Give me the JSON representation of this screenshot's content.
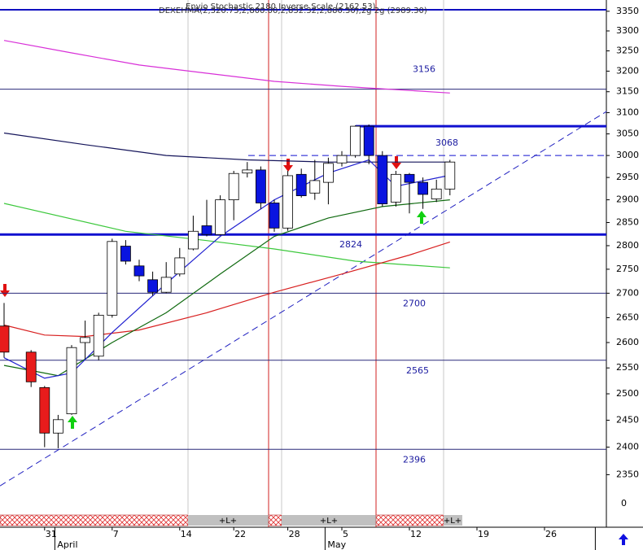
{
  "chart_data": {
    "type": "candlestick",
    "header": [
      "DEXEHMA(2,320.75,2,800.00,2,832.32,2,880.30),2g 2g (2989.30)",
      "Envio Stochastic 2180 Inverse Scale (2162.53)"
    ],
    "categories": [
      null,
      null,
      null,
      "31",
      null,
      null,
      null,
      null,
      "7",
      null,
      null,
      null,
      null,
      "14",
      null,
      null,
      null,
      "22",
      null,
      null,
      null,
      "28",
      null,
      null,
      null,
      "5",
      null,
      null,
      null,
      null,
      "12",
      null,
      null,
      null,
      null,
      "19",
      null,
      null,
      null,
      null,
      "26",
      null,
      null,
      null,
      null
    ],
    "months": [
      null,
      null,
      null,
      null,
      "April",
      null,
      null,
      null,
      null,
      null,
      null,
      null,
      null,
      null,
      null,
      null,
      null,
      null,
      null,
      null,
      null,
      null,
      null,
      null,
      "May",
      null,
      null,
      null,
      null,
      null,
      null,
      null,
      null,
      null,
      null,
      null,
      null,
      null,
      null,
      null,
      null,
      null,
      null,
      null
    ],
    "open": [
      2633,
      null,
      2581,
      2512,
      2426,
      2462,
      2600,
      2573,
      2655,
      2799,
      2757,
      2728,
      2702,
      2740,
      2793,
      2843,
      2824,
      2900,
      2960,
      2967,
      2893,
      2838,
      2957,
      2915,
      2939,
      2983,
      3000,
      3068,
      3000,
      2895,
      2957,
      2939,
      2902,
      2924,
      null,
      null,
      null,
      null,
      null,
      null,
      null,
      null,
      null,
      null
    ],
    "high": [
      2680,
      null,
      2585,
      2515,
      2460,
      2595,
      2644,
      2660,
      2815,
      2812,
      2770,
      2745,
      2765,
      2795,
      2865,
      2900,
      2910,
      2965,
      2985,
      2975,
      2900,
      2965,
      2970,
      2990,
      2995,
      3010,
      3070,
      3072,
      3010,
      2965,
      2960,
      2950,
      2945,
      2990,
      null,
      null,
      null,
      null,
      null,
      null,
      null,
      null,
      null,
      null
    ],
    "low": [
      2570,
      null,
      2513,
      2400,
      2398,
      2460,
      2568,
      2565,
      2650,
      2760,
      2725,
      2695,
      2700,
      2735,
      2790,
      2820,
      2822,
      2855,
      2950,
      2880,
      2830,
      2832,
      2905,
      2900,
      2890,
      2975,
      2995,
      2980,
      2885,
      2885,
      2870,
      2880,
      2895,
      2910,
      null,
      null,
      null,
      null,
      null,
      null,
      null,
      null,
      null,
      null
    ],
    "close": [
      2581,
      null,
      2523,
      2426,
      2451,
      2590,
      2610,
      2655,
      2809,
      2767,
      2736,
      2702,
      2733,
      2774,
      2831,
      2824,
      2900,
      2959,
      2967,
      2893,
      2838,
      2954,
      2909,
      2943,
      2982,
      3000,
      3068,
      3000,
      2891,
      2957,
      2939,
      2912,
      2924,
      2985,
      null,
      null,
      null,
      null,
      null,
      null,
      null,
      null,
      null,
      null
    ],
    "colors": [
      "#e81c1c",
      null,
      "#e81c1c",
      "#e81c1c",
      "#ffffff",
      "#ffffff",
      "#ffffff",
      "#ffffff",
      "#ffffff",
      "#0a14e0",
      "#0a14e0",
      "#0a14e0",
      "#ffffff",
      "#ffffff",
      "#ffffff",
      "#0a14e0",
      "#ffffff",
      "#ffffff",
      "#ffffff",
      "#0a14e0",
      "#0a14e0",
      "#ffffff",
      "#0a14e0",
      "#ffffff",
      "#ffffff",
      "#ffffff",
      "#ffffff",
      "#0a14e0",
      "#0a14e0",
      "#ffffff",
      "#0a14e0",
      "#0a14e0",
      "#ffffff",
      "#ffffff",
      null,
      null,
      null,
      null,
      null,
      null,
      null,
      null,
      null,
      null
    ],
    "lines": [
      {
        "color": "#d830d8",
        "x": [
          0,
          5,
          10,
          15,
          20,
          25,
          30,
          33
        ],
        "values": [
          3276,
          3245,
          3215,
          3195,
          3175,
          3163,
          3153,
          3147
        ]
      },
      {
        "color": "#14145a",
        "x": [
          0,
          6,
          12,
          18,
          24,
          33
        ],
        "values": [
          3052,
          3025,
          3000,
          2990,
          2985,
          2985
        ]
      },
      {
        "color": "#3cc83c",
        "x": [
          0,
          9,
          15,
          20,
          26,
          33
        ],
        "values": [
          2892,
          2831,
          2811,
          2793,
          2767,
          2753
        ]
      },
      {
        "color": "#d82020",
        "x": [
          0,
          3,
          6,
          10,
          15,
          20,
          25,
          30,
          33
        ],
        "values": [
          2635,
          2615,
          2612,
          2625,
          2660,
          2702,
          2740,
          2780,
          2808
        ]
      },
      {
        "color": "#106a10",
        "x": [
          0,
          2,
          4,
          8,
          12,
          16,
          20,
          24,
          28,
          33
        ],
        "values": [
          2555,
          2545,
          2535,
          2600,
          2660,
          2740,
          2820,
          2860,
          2885,
          2900
        ]
      },
      {
        "color": "#2020d0",
        "x": [
          0,
          3,
          5,
          8,
          12,
          16,
          20,
          24,
          27,
          29,
          33
        ],
        "values": [
          2570,
          2530,
          2540,
          2620,
          2720,
          2820,
          2900,
          2960,
          2990,
          2930,
          2955
        ]
      }
    ],
    "trendline": {
      "color": "#2020c0",
      "x": [
        -0.3,
        44.6
      ],
      "values": [
        2330,
        3103
      ]
    },
    "levels": [
      3156,
      3068,
      2824,
      2700,
      2565,
      2396
    ],
    "level_widths": [
      1,
      3,
      3,
      1,
      1,
      1
    ],
    "ylim": [
      2280,
      3379
    ],
    "log_scale": true,
    "yticks": [
      2350,
      2400,
      2450,
      2500,
      2550,
      2600,
      2650,
      2700,
      2750,
      2800,
      2850,
      2900,
      2950,
      3000,
      3050,
      3100,
      3150,
      3200,
      3250,
      3300,
      3350
    ],
    "lower_yticks": [
      0
    ],
    "strip_labels": [
      "+L+",
      "+L+",
      "+L+"
    ]
  }
}
